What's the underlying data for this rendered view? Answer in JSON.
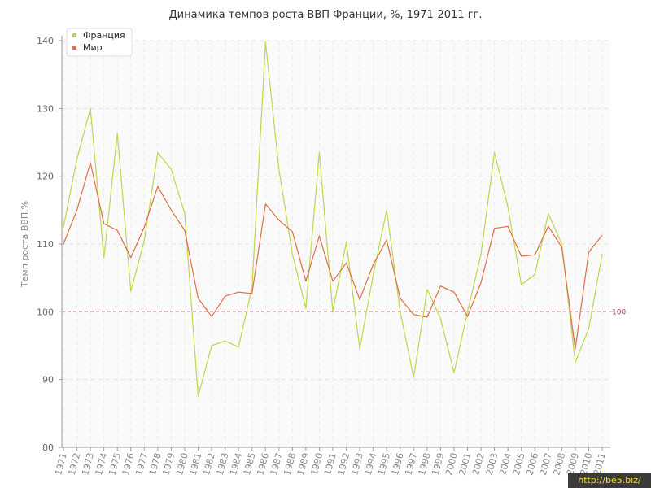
{
  "watermark": "http://be5.biz/",
  "chart_data": {
    "type": "line",
    "title": "Динамика темпов роста ВВП Франции, %, 1971-2011 гг.",
    "ylabel": "Темп роста ВВП,%",
    "xlabel": "",
    "ylim": [
      80,
      140
    ],
    "yticks": [
      80,
      90,
      100,
      110,
      120,
      130,
      140
    ],
    "grid": true,
    "legend_position": "top-left",
    "x": [
      "1971",
      "1972",
      "1973",
      "1974",
      "1975",
      "1976",
      "1977",
      "1978",
      "1979",
      "1980",
      "1981",
      "1982",
      "1983",
      "1984",
      "1985",
      "1986",
      "1987",
      "1988",
      "1989",
      "1990",
      "1991",
      "1992",
      "1993",
      "1994",
      "1995",
      "1996",
      "1997",
      "1998",
      "1999",
      "2000",
      "2001",
      "2002",
      "2003",
      "2004",
      "2005",
      "2006",
      "2007",
      "2008",
      "2009",
      "2010",
      "2011"
    ],
    "series": [
      {
        "name": "Франция",
        "color": "#bcd74a",
        "values": [
          112.5,
          122.5,
          130,
          108,
          126.3,
          103,
          110.5,
          123.5,
          121,
          114.5,
          87.5,
          95,
          95.7,
          94.8,
          103.5,
          139.8,
          121,
          108.5,
          100.5,
          123.5,
          100,
          110.3,
          94.5,
          105.5,
          115,
          100,
          90.3,
          103.3,
          99,
          91,
          100,
          108.5,
          123.5,
          115.5,
          104,
          105.5,
          114.5,
          110,
          92.5,
          97.5,
          108.5
        ]
      },
      {
        "name": "Мир",
        "color": "#de6e47",
        "values": [
          110,
          115,
          122,
          113,
          112,
          108,
          112.5,
          118.5,
          115,
          112,
          102,
          99.3,
          102.3,
          102.9,
          102.7,
          115.9,
          113.5,
          111.8,
          104.5,
          111.2,
          104.5,
          107.2,
          101.8,
          107,
          110.6,
          102,
          99.6,
          99.2,
          103.8,
          102.9,
          99.3,
          104.3,
          112.3,
          112.6,
          108.2,
          108.4,
          112.6,
          109.5,
          94.5,
          108.8,
          111.3
        ]
      }
    ],
    "reference_line": {
      "value": 100,
      "label": "100",
      "color": "#9b3b4b"
    }
  }
}
